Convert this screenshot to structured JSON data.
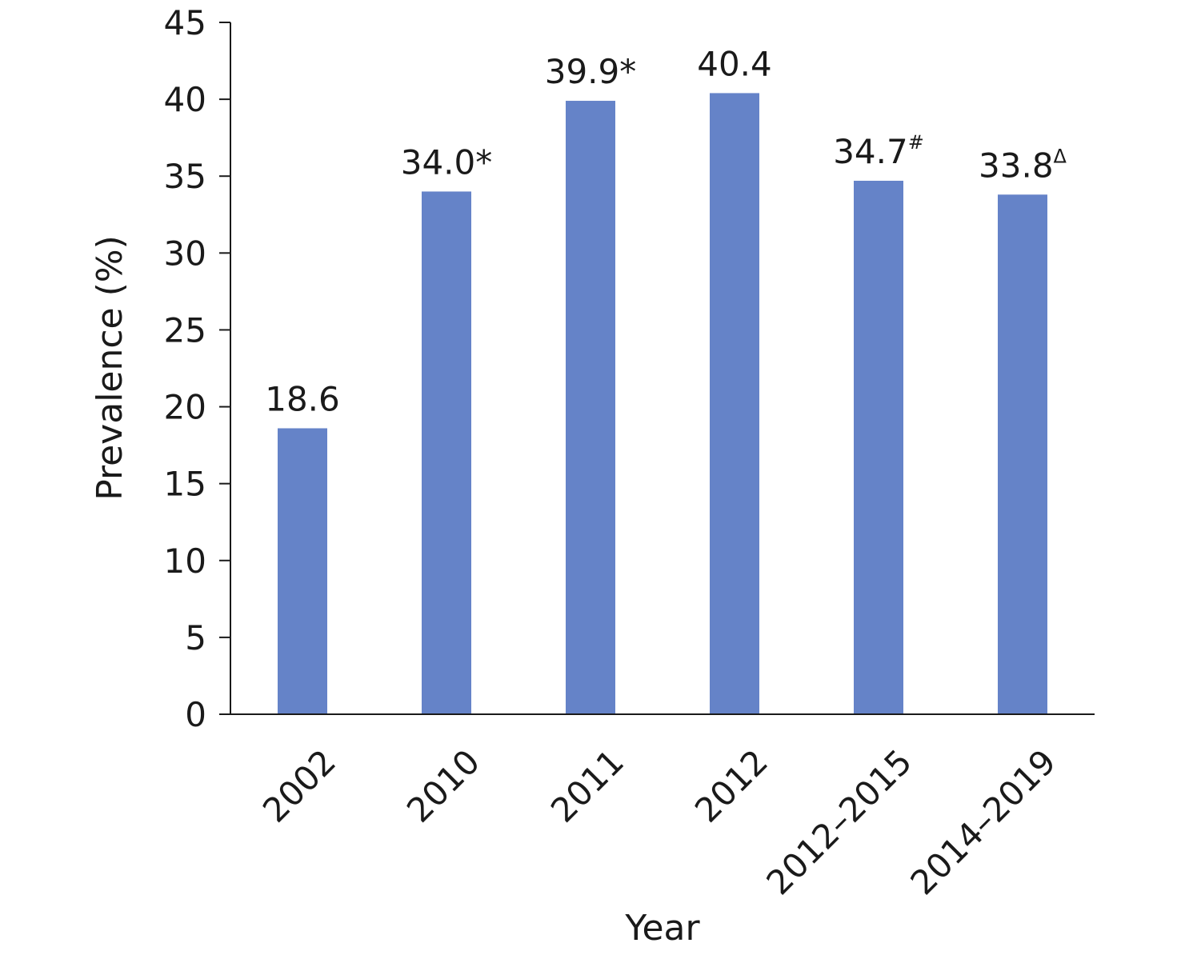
{
  "chart_data": {
    "type": "bar",
    "title": "",
    "xlabel": "Year",
    "ylabel": "Prevalence (%)",
    "ylim": [
      0,
      45
    ],
    "yticks": [
      0,
      5,
      10,
      15,
      20,
      25,
      30,
      35,
      40,
      45
    ],
    "grid": false,
    "legend": "none",
    "categories": [
      "2002",
      "2010",
      "2011",
      "2012",
      "2012–2015",
      "2014–2019"
    ],
    "values": [
      18.6,
      34.0,
      39.9,
      40.4,
      34.7,
      33.8
    ],
    "data_labels": [
      {
        "text": "18.6",
        "mark": ""
      },
      {
        "text": "34.0",
        "mark": "*"
      },
      {
        "text": "39.9",
        "mark": "*"
      },
      {
        "text": "40.4",
        "mark": ""
      },
      {
        "text": "34.7",
        "mark": "#"
      },
      {
        "text": "33.8",
        "mark": "Δ"
      }
    ],
    "colors": {
      "bar": "#6583c8",
      "axis": "#1a1a1a",
      "text": "#1a1a1a"
    }
  }
}
